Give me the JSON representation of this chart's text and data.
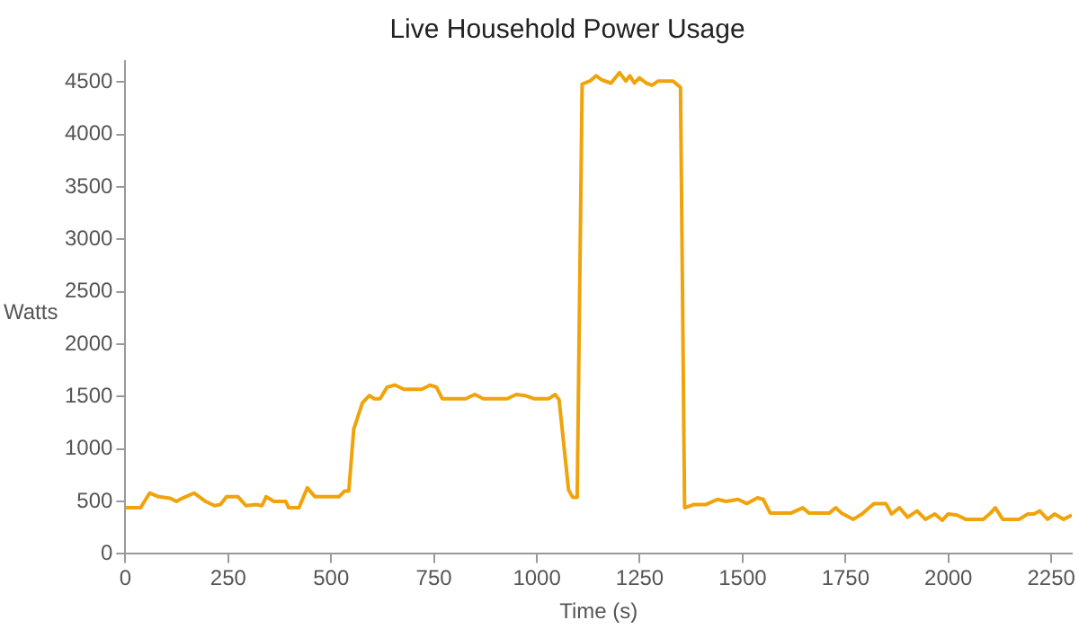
{
  "chart_data": {
    "type": "line",
    "title": "Live Household Power Usage",
    "xlabel": "Time (s)",
    "ylabel": "Watts",
    "xlim": [
      0,
      2300
    ],
    "xticks": [
      0,
      250,
      500,
      750,
      1000,
      1250,
      1500,
      1750,
      2000,
      2250
    ],
    "ylim": [
      0,
      4700
    ],
    "yticks": [
      0,
      500,
      1000,
      1500,
      2000,
      2500,
      3000,
      3500,
      4000,
      4500
    ],
    "grid": false,
    "legend": false,
    "marker": "none",
    "line_style": "solid",
    "series": [
      {
        "color": "#f0a30a",
        "x": [
          0,
          37,
          59,
          81,
          109,
          124,
          138,
          167,
          195,
          217,
          231,
          246,
          274,
          293,
          318,
          332,
          342,
          361,
          390,
          397,
          422,
          442,
          461,
          519,
          533,
          543,
          555,
          576,
          593,
          605,
          619,
          636,
          655,
          677,
          720,
          741,
          756,
          770,
          827,
          849,
          870,
          928,
          950,
          971,
          993,
          1029,
          1044,
          1054,
          1077,
          1087,
          1098,
          1110,
          1129,
          1144,
          1158,
          1180,
          1201,
          1216,
          1226,
          1237,
          1249,
          1266,
          1280,
          1295,
          1331,
          1349,
          1359,
          1381,
          1410,
          1439,
          1460,
          1489,
          1510,
          1536,
          1550,
          1567,
          1618,
          1646,
          1661,
          1711,
          1726,
          1740,
          1769,
          1790,
          1819,
          1848,
          1862,
          1881,
          1901,
          1924,
          1944,
          1967,
          1985,
          1999,
          2021,
          2042,
          2085,
          2100,
          2114,
          2132,
          2172,
          2193,
          2208,
          2222,
          2241,
          2258,
          2280,
          2300
        ],
        "values": [
          440,
          440,
          580,
          545,
          530,
          500,
          530,
          580,
          500,
          460,
          470,
          545,
          545,
          460,
          470,
          460,
          545,
          500,
          500,
          440,
          440,
          630,
          545,
          545,
          600,
          600,
          1190,
          1440,
          1510,
          1480,
          1480,
          1590,
          1610,
          1570,
          1570,
          1610,
          1590,
          1480,
          1480,
          1520,
          1480,
          1480,
          1520,
          1510,
          1480,
          1480,
          1520,
          1470,
          610,
          540,
          540,
          4480,
          4510,
          4560,
          4520,
          4490,
          4590,
          4510,
          4560,
          4490,
          4540,
          4490,
          4470,
          4510,
          4510,
          4450,
          440,
          470,
          470,
          520,
          500,
          520,
          480,
          535,
          520,
          390,
          390,
          440,
          390,
          390,
          440,
          390,
          330,
          380,
          480,
          480,
          380,
          440,
          350,
          410,
          330,
          380,
          320,
          380,
          370,
          330,
          330,
          380,
          440,
          330,
          330,
          380,
          380,
          410,
          330,
          380,
          330,
          370
        ]
      }
    ]
  }
}
